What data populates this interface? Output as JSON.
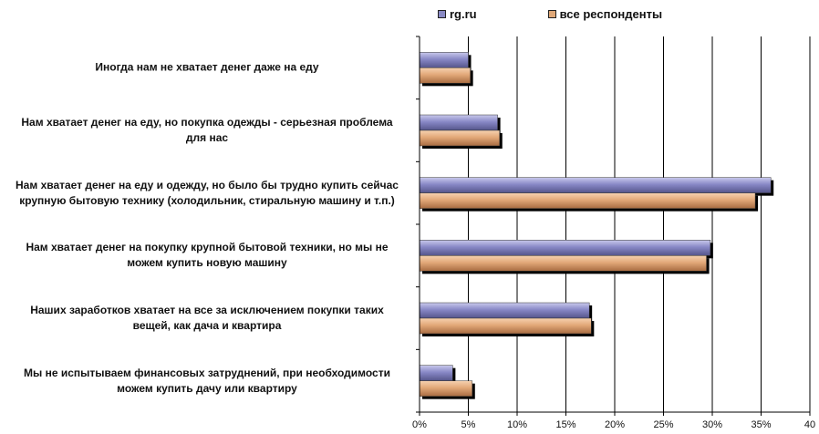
{
  "chart_data": {
    "type": "bar",
    "orientation": "horizontal",
    "categories": [
      "Иногда нам не хватает денег даже на еду",
      "Нам хватает денег на еду, но покупка одежды - серьезная проблема для нас",
      "Нам хватает денег на еду и одежду, но было бы трудно купить сейчас крупную бытовую технику (холодильник, стиральную машину и т.п.)",
      "Нам хватает денег на покупку крупной бытовой техники, но мы не можем купить новую машину",
      "Наших заработков хватает на все за исключением покупки таких вещей, как дача и квартира",
      "Мы не испытываем финансовых затруднений, при необходимости можем купить дачу или квартиру"
    ],
    "category_lines": [
      [
        "Иногда нам не хватает денег даже на еду"
      ],
      [
        "Нам хватает денег на еду, но покупка одежды - серьезная проблема",
        "для нас"
      ],
      [
        "Нам хватает денег на еду и одежду, но было бы трудно купить сейчас",
        "крупную бытовую технику (холодильник, стиральную машину и т.п.)"
      ],
      [
        "Нам хватает денег на покупку крупной бытовой техники, но мы не",
        "можем купить новую машину"
      ],
      [
        "Наших заработков хватает на все за исключением покупки таких",
        "вещей, как дача и квартира"
      ],
      [
        "Мы не испытываем финансовых затруднений, при необходимости",
        "можем купить дачу или квартиру"
      ]
    ],
    "series": [
      {
        "name": "rg.ru",
        "values": [
          5.0,
          8.0,
          36.0,
          29.8,
          17.4,
          3.4
        ],
        "color": "#8a8ac4"
      },
      {
        "name": "все респонденты",
        "values": [
          5.2,
          8.2,
          34.4,
          29.4,
          17.6,
          5.4
        ],
        "color": "#e0a878"
      }
    ],
    "xticks": [
      "0%",
      "5%",
      "10%",
      "15%",
      "20%",
      "25%",
      "30%",
      "35%",
      "40"
    ],
    "xlim": [
      0,
      40
    ],
    "grid": true,
    "legend_position": "top"
  }
}
